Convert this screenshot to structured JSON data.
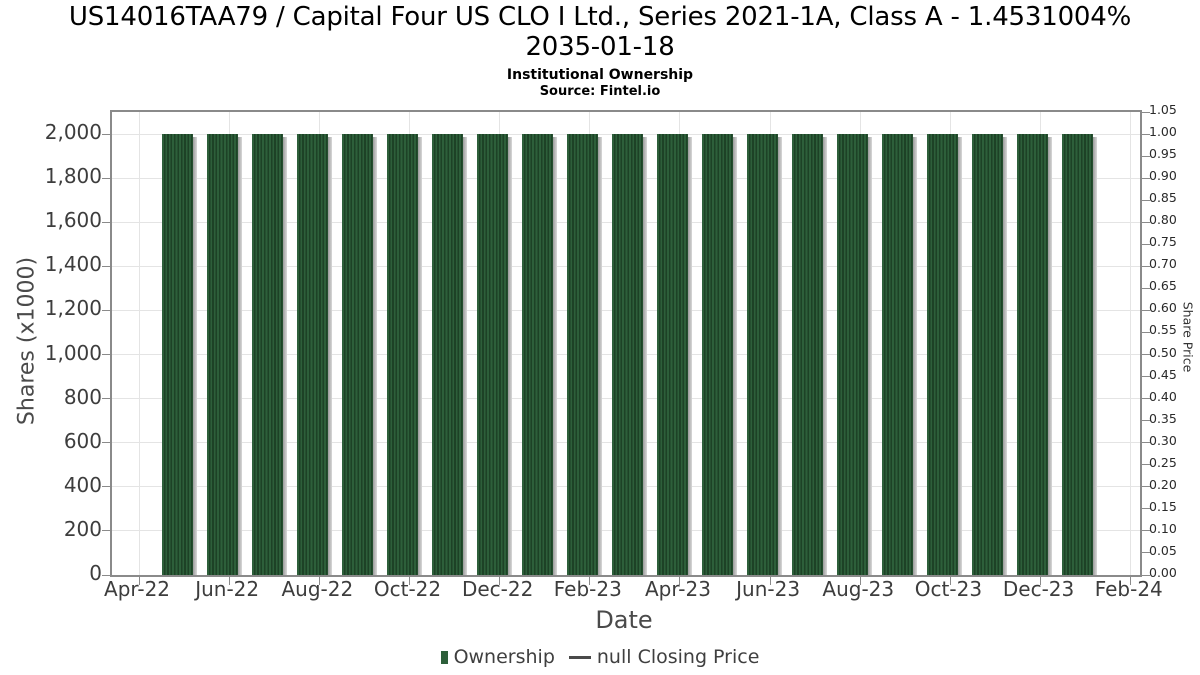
{
  "header": {
    "title_line1": "US14016TAA79 / Capital Four US CLO I Ltd., Series 2021-1A, Class A - 1.4531004%",
    "title_line2": "2035-01-18",
    "subtitle": "Institutional Ownership",
    "source": "Source: Fintel.io"
  },
  "chart_data": {
    "type": "bar",
    "title": "US14016TAA79 / Capital Four US CLO I Ltd., Series 2021-1A, Class A - 1.4531004% 2035-01-18",
    "subtitle": "Institutional Ownership",
    "source": "Source: Fintel.io",
    "xlabel": "Date",
    "ylabel_left": "Shares (x1000)",
    "ylabel_right": "Share Price",
    "categories": [
      "May-22",
      "Jun-22",
      "Jul-22",
      "Aug-22",
      "Sep-22",
      "Oct-22",
      "Nov-22",
      "Dec-22",
      "Jan-23",
      "Feb-23",
      "Mar-23",
      "Apr-23",
      "May-23",
      "Jun-23",
      "Jul-23",
      "Aug-23",
      "Sep-23",
      "Oct-23",
      "Nov-23",
      "Dec-23",
      "Jan-24"
    ],
    "series": [
      {
        "name": "Ownership",
        "type": "bar",
        "units": "shares x1000",
        "color": "#2d5f3a",
        "values": [
          2000,
          2000,
          2000,
          2000,
          2000,
          2000,
          2000,
          2000,
          2000,
          2000,
          2000,
          2000,
          2000,
          2000,
          2000,
          2000,
          2000,
          2000,
          2000,
          2000,
          2000
        ]
      },
      {
        "name": "null Closing Price",
        "type": "line",
        "color": "#4a4a4a",
        "values": null
      }
    ],
    "x_tick_labels": [
      "Apr-22",
      "Jun-22",
      "Aug-22",
      "Oct-22",
      "Dec-22",
      "Feb-23",
      "Apr-23",
      "Jun-23",
      "Aug-23",
      "Oct-23",
      "Dec-23",
      "Feb-24"
    ],
    "y_left_ticks": [
      0,
      200,
      400,
      600,
      800,
      1000,
      1200,
      1400,
      1600,
      1800,
      2000
    ],
    "y_left_tick_labels": [
      "0",
      "200",
      "400",
      "600",
      "800",
      "1,000",
      "1,200",
      "1,400",
      "1,600",
      "1,800",
      "2,000"
    ],
    "y_left_max": 2100,
    "y_right_min": 0.0,
    "y_right_max": 1.05,
    "y_right_step": 0.05,
    "ylim_left": [
      0,
      2100
    ],
    "ylim_right": [
      0,
      1.05
    ],
    "grid": true,
    "legend_position": "bottom",
    "colors": {
      "bar_green": "#2d5f3a",
      "bar_stripe_dark": "#1d4226",
      "bar_shadow": "#9a9a9a",
      "grid": "#e4e4e4",
      "plot_border": "#8a8a8a",
      "tick_text": "#3d3d3d"
    }
  },
  "legend": {
    "items": [
      {
        "label": "Ownership",
        "marker": "bar",
        "color": "#2d5f3a"
      },
      {
        "label": "null Closing Price",
        "marker": "line",
        "color": "#4a4a4a"
      }
    ]
  }
}
